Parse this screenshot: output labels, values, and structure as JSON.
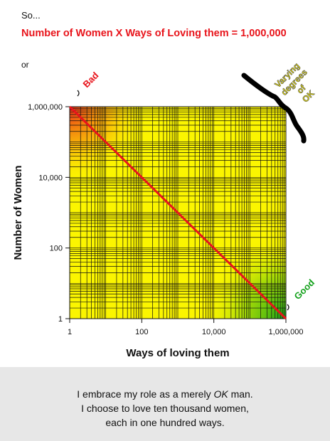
{
  "intro": "So...",
  "equation": "Number of Women  X  Ways of Loving them = 1,000,000",
  "or_label": "or",
  "annotations": {
    "bad": "Bad",
    "good": "Good",
    "varying": [
      "Varying",
      "degrees",
      "of",
      "OK"
    ]
  },
  "colors": {
    "bad": "#e8141b",
    "good": "#11a019",
    "plot_background": "#fbf500",
    "line": "#e8141b",
    "varying_text": "#e1d800"
  },
  "footer": {
    "line1_pre": "I embrace my role as a merely ",
    "line1_em": "OK",
    "line1_post": " man.",
    "line2": "I choose to love ten thousand women,",
    "line3": "each in one hundred ways."
  },
  "chart_data": {
    "type": "line",
    "title": "",
    "xlabel": "Ways of loving them",
    "ylabel": "Number of Women",
    "xscale": "log",
    "yscale": "log",
    "xlim": [
      1,
      1000000
    ],
    "ylim": [
      1,
      1000000
    ],
    "x_ticks": [
      1,
      100,
      10000,
      1000000
    ],
    "x_tick_labels": [
      "1",
      "100",
      "10,000",
      "1,000,000"
    ],
    "y_ticks": [
      1,
      100,
      10000,
      1000000
    ],
    "y_tick_labels": [
      "1",
      "100",
      "10,000",
      "1,000,000"
    ],
    "grid": true,
    "series": [
      {
        "x": [
          1,
          1000000
        ],
        "y": [
          1000000,
          1
        ]
      }
    ]
  }
}
